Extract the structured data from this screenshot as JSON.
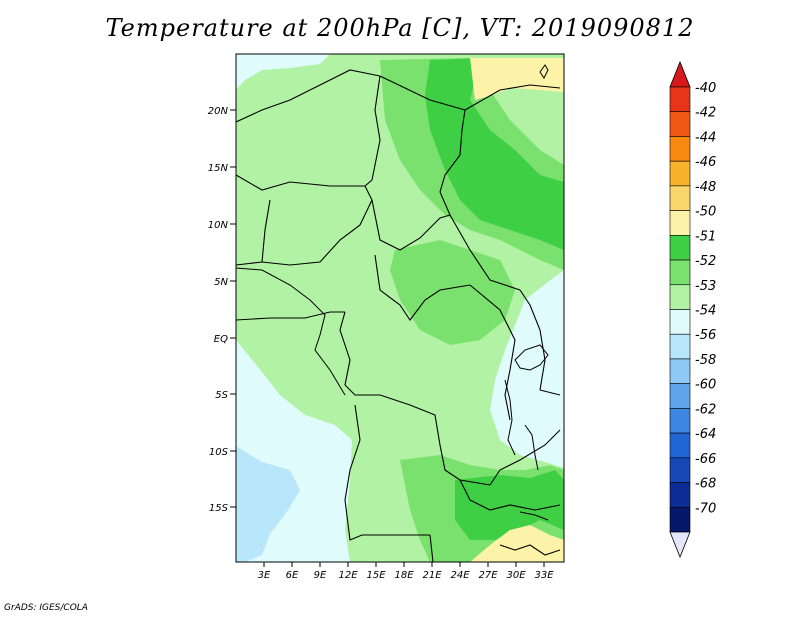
{
  "title": "Temperature at 200hPa [C], VT: 2019090812",
  "credit": "GrADS: IGES/COLA",
  "map": {
    "lat_labels": [
      "20N",
      "15N",
      "10N",
      "5N",
      "EQ",
      "5S",
      "10S",
      "15S"
    ],
    "lon_labels": [
      "3E",
      "6E",
      "9E",
      "12E",
      "15E",
      "18E",
      "21E",
      "24E",
      "27E",
      "30E",
      "33E"
    ]
  },
  "colorbar": {
    "labels": [
      "-40",
      "-42",
      "-44",
      "-46",
      "-48",
      "-50",
      "-51",
      "-52",
      "-53",
      "-54",
      "-56",
      "-58",
      "-60",
      "-62",
      "-64",
      "-66",
      "-68",
      "-70"
    ],
    "colors": {
      "top_triangle": "#d7191c",
      "bottom_triangle": "#e6e6fa",
      "cells": [
        "#e8341a",
        "#f05a14",
        "#f88a12",
        "#f9b22c",
        "#fbd66a",
        "#fdf3a8",
        "#3ecf45",
        "#7ae06e",
        "#b2f2a4",
        "#e0fbfb",
        "#b8e7fb",
        "#8ec8f5",
        "#5fa5ee",
        "#3f86e3",
        "#2166d3",
        "#1648b8",
        "#0c2c96",
        "#06186a"
      ]
    }
  },
  "shading_colors": {
    "c53": "#b2f2a4",
    "c52": "#7ae06e",
    "c51": "#3ecf45",
    "c50": "#fdf3a8",
    "c49": "#fbd66a",
    "c54": "#e0fbfb",
    "c56": "#b8e7fb",
    "c58": "#8ec8f5"
  }
}
